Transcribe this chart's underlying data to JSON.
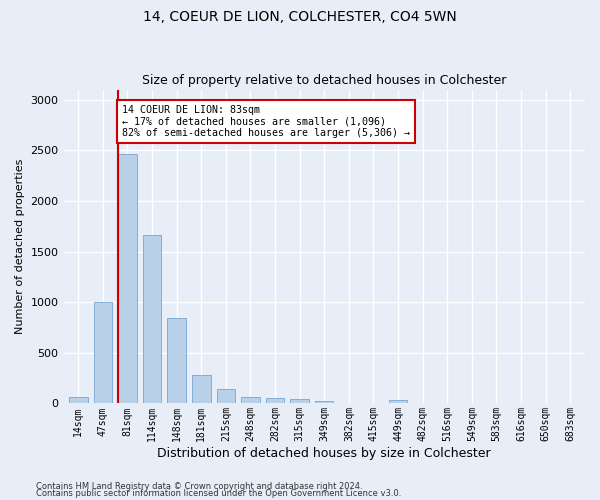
{
  "title": "14, COEUR DE LION, COLCHESTER, CO4 5WN",
  "subtitle": "Size of property relative to detached houses in Colchester",
  "xlabel": "Distribution of detached houses by size in Colchester",
  "ylabel": "Number of detached properties",
  "bar_color": "#b8d0e8",
  "bar_edge_color": "#6699cc",
  "background_color": "#e8eef8",
  "annotation_box_color": "#cc0000",
  "property_line_color": "#cc0000",
  "annotation_text": "14 COEUR DE LION: 83sqm\n← 17% of detached houses are smaller (1,096)\n82% of semi-detached houses are larger (5,306) →",
  "categories": [
    "14sqm",
    "47sqm",
    "81sqm",
    "114sqm",
    "148sqm",
    "181sqm",
    "215sqm",
    "248sqm",
    "282sqm",
    "315sqm",
    "349sqm",
    "382sqm",
    "415sqm",
    "449sqm",
    "482sqm",
    "516sqm",
    "549sqm",
    "583sqm",
    "616sqm",
    "650sqm",
    "683sqm"
  ],
  "bar_heights": [
    60,
    1000,
    2460,
    1660,
    840,
    285,
    145,
    60,
    55,
    42,
    25,
    0,
    0,
    35,
    0,
    0,
    0,
    0,
    0,
    0,
    0
  ],
  "ylim": [
    0,
    3100
  ],
  "yticks": [
    0,
    500,
    1000,
    1500,
    2000,
    2500,
    3000
  ],
  "footnote1": "Contains HM Land Registry data © Crown copyright and database right 2024.",
  "footnote2": "Contains public sector information licensed under the Open Government Licence v3.0."
}
